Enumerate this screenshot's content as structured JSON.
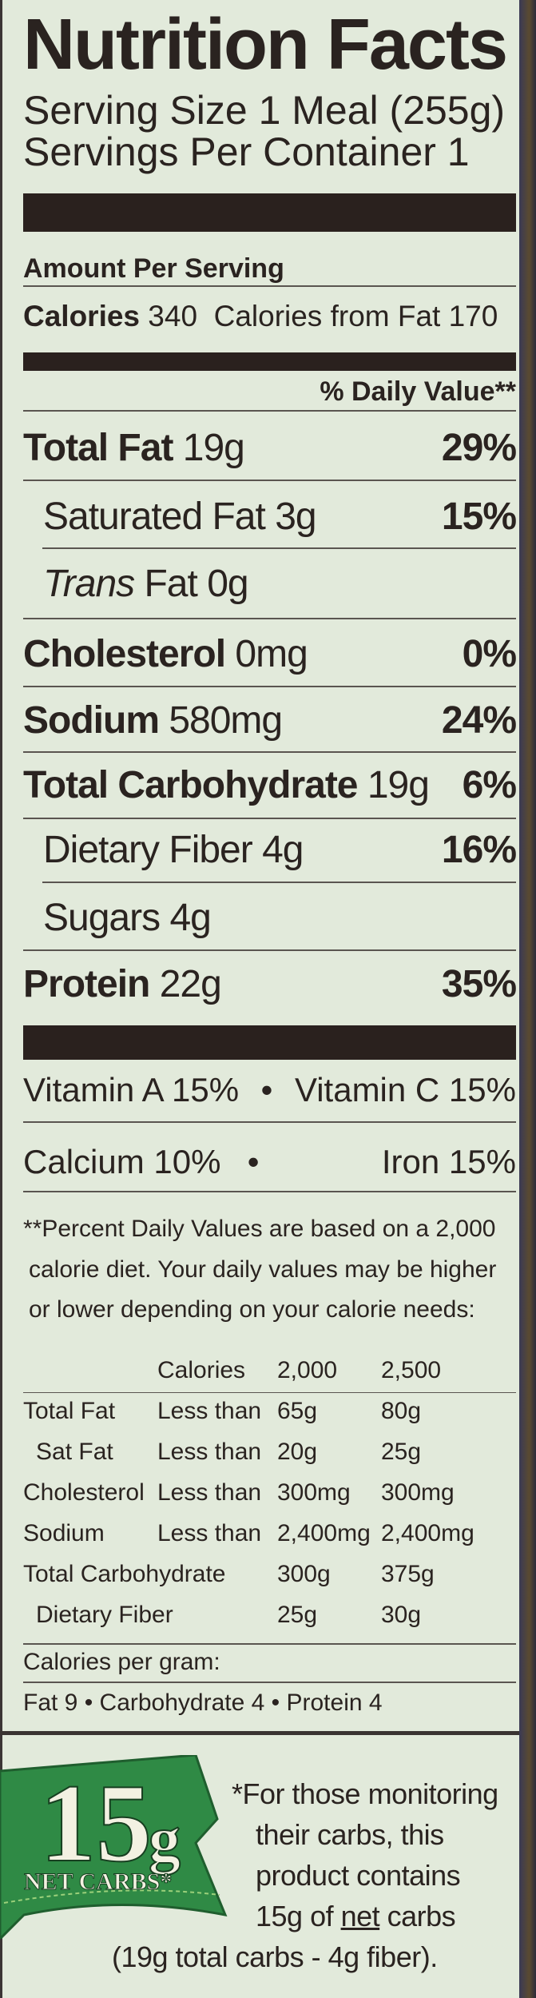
{
  "title": "Nutrition Facts",
  "serving_size": "Serving Size 1 Meal (255g)",
  "servings_per_container": "Servings Per Container 1",
  "amount_per_serving": "Amount Per Serving",
  "calories": {
    "label": "Calories",
    "value": "340",
    "from_fat_label": "Calories from Fat",
    "from_fat_value": "170"
  },
  "daily_value_header": "% Daily Value**",
  "nutrients": [
    {
      "label": "Total Fat",
      "amount": "19g",
      "dv": "29%"
    },
    {
      "label": "Saturated Fat",
      "amount": "3g",
      "dv": "15%"
    },
    {
      "label": "Trans",
      "label_rest": "Fat",
      "amount": "0g",
      "dv": ""
    },
    {
      "label": "Cholesterol",
      "amount": "0mg",
      "dv": "0%"
    },
    {
      "label": "Sodium",
      "amount": "580mg",
      "dv": "24%"
    },
    {
      "label": "Total Carbohydrate",
      "amount": "19g",
      "dv": "6%"
    },
    {
      "label": "Dietary Fiber",
      "amount": "4g",
      "dv": "16%"
    },
    {
      "label": "Sugars",
      "amount": "4g",
      "dv": ""
    },
    {
      "label": "Protein",
      "amount": "22g",
      "dv": "35%"
    }
  ],
  "vitamins": {
    "vitamin_a": "Vitamin A 15%",
    "vitamin_c": "Vitamin C 15%",
    "calcium": "Calcium 10%",
    "iron": "Iron 15%",
    "bullet": "•"
  },
  "footnote": [
    "**Percent Daily Values are based on a 2,000",
    "calorie diet. Your daily values may be higher",
    "or lower depending on your calorie needs:"
  ],
  "dv_table": {
    "header": [
      "",
      "Calories",
      "2,000",
      "2,500"
    ],
    "rows": [
      [
        "Total Fat",
        "Less than",
        "65g",
        "80g"
      ],
      [
        "Sat Fat",
        "Less than",
        "20g",
        "25g"
      ],
      [
        "Cholesterol",
        "Less than",
        "300mg",
        "300mg"
      ],
      [
        "Sodium",
        "Less than",
        "2,400mg",
        "2,400mg"
      ],
      [
        "Total Carbohydrate",
        "",
        "300g",
        "375g"
      ],
      [
        "Dietary Fiber",
        "",
        "25g",
        "30g"
      ]
    ]
  },
  "calories_per_gram": {
    "label": "Calories per gram:",
    "values": "Fat 9 • Carbohydrate 4 • Protein 4"
  },
  "net_carbs_badge": {
    "amount": "15",
    "unit": "g",
    "label": "NET CARBS*",
    "color": "#2f8a45"
  },
  "net_carbs_note": {
    "lines": [
      "*For those monitoring",
      "their carbs, this",
      "product contains"
    ],
    "line4_pre": "15g of ",
    "line4_underlined": "net",
    "line4_post": " carbs",
    "line5": "(19g total carbs - 4g fiber)."
  }
}
